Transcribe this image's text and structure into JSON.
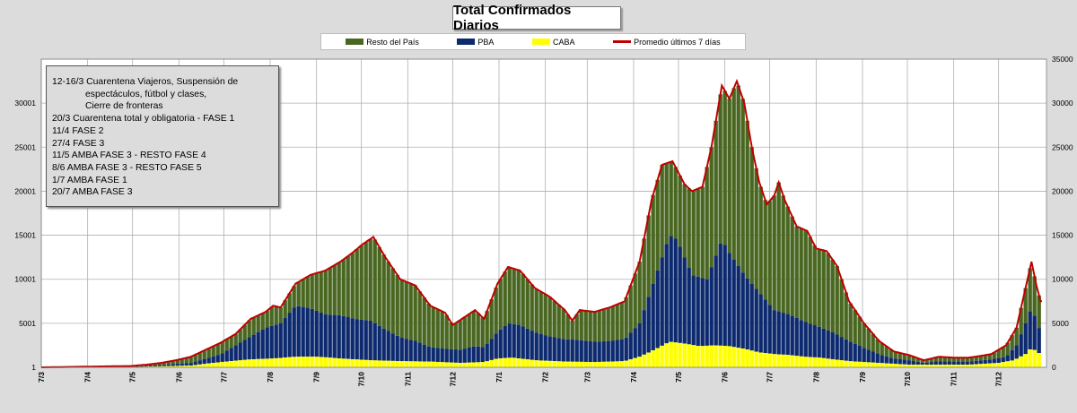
{
  "chart_data": {
    "type": "stacked-bar-with-line",
    "title": "Total  Confirmados  Diarios",
    "series_names": {
      "resto": "Resto del País",
      "pba": "PBA",
      "caba": "CABA",
      "line": "Promedio últimos 7 días"
    },
    "colors": {
      "resto": "#4a6722",
      "pba": "#0d2a6e",
      "caba": "#ffff00",
      "line": "#c00000",
      "grid": "#b0b0b0",
      "plot_bg": "#ffffff"
    },
    "left_axis": {
      "ticks": [
        "1",
        "5001",
        "10001",
        "15001",
        "20001",
        "25001",
        "30001"
      ],
      "values": [
        1,
        5001,
        10001,
        15001,
        20001,
        25001,
        30001
      ],
      "range": [
        1,
        35001
      ]
    },
    "right_axis": {
      "ticks": [
        "0",
        "5000",
        "10000",
        "15000",
        "20000",
        "25000",
        "30000",
        "35000"
      ],
      "values": [
        0,
        5000,
        10000,
        15000,
        20000,
        25000,
        30000,
        35000
      ],
      "range": [
        0,
        35000
      ]
    },
    "x_tick_labels": [
      "7/3",
      "7/4",
      "7/5",
      "7/6",
      "7/7",
      "7/8",
      "7/9",
      "7/10",
      "7/11",
      "7/12",
      "7/1",
      "7/2",
      "7/3",
      "7/4",
      "7/5",
      "7/6",
      "7/7",
      "7/8",
      "7/9",
      "7/10",
      "7/11",
      "7/12"
    ],
    "x_tick_days": [
      0,
      31,
      61,
      92,
      122,
      153,
      184,
      214,
      245,
      275,
      306,
      337,
      365,
      396,
      426,
      457,
      487,
      518,
      549,
      579,
      610,
      640
    ],
    "total_days": 672,
    "bar_stride_days": 3,
    "total_keypoints": [
      [
        0,
        0
      ],
      [
        20,
        50
      ],
      [
        40,
        100
      ],
      [
        60,
        150
      ],
      [
        70,
        300
      ],
      [
        80,
        500
      ],
      [
        90,
        800
      ],
      [
        100,
        1200
      ],
      [
        110,
        2000
      ],
      [
        120,
        2800
      ],
      [
        130,
        3800
      ],
      [
        140,
        5500
      ],
      [
        150,
        6300
      ],
      [
        155,
        7000
      ],
      [
        160,
        6800
      ],
      [
        170,
        9500
      ],
      [
        180,
        10500
      ],
      [
        190,
        11000
      ],
      [
        200,
        12000
      ],
      [
        208,
        13000
      ],
      [
        215,
        14000
      ],
      [
        222,
        14800
      ],
      [
        230,
        12500
      ],
      [
        240,
        10000
      ],
      [
        250,
        9300
      ],
      [
        260,
        7000
      ],
      [
        270,
        6200
      ],
      [
        275,
        4800
      ],
      [
        290,
        6500
      ],
      [
        296,
        5500
      ],
      [
        305,
        9500
      ],
      [
        312,
        11400
      ],
      [
        320,
        11000
      ],
      [
        330,
        9000
      ],
      [
        340,
        8000
      ],
      [
        350,
        6500
      ],
      [
        355,
        5300
      ],
      [
        360,
        6500
      ],
      [
        370,
        6300
      ],
      [
        380,
        6800
      ],
      [
        390,
        7500
      ],
      [
        400,
        12000
      ],
      [
        408,
        19000
      ],
      [
        415,
        23000
      ],
      [
        422,
        23400
      ],
      [
        430,
        20800
      ],
      [
        435,
        20000
      ],
      [
        442,
        20500
      ],
      [
        448,
        25000
      ],
      [
        455,
        32000
      ],
      [
        460,
        30500
      ],
      [
        465,
        32500
      ],
      [
        470,
        30000
      ],
      [
        475,
        25000
      ],
      [
        480,
        21000
      ],
      [
        485,
        18500
      ],
      [
        490,
        19500
      ],
      [
        493,
        21000
      ],
      [
        497,
        19000
      ],
      [
        505,
        16000
      ],
      [
        512,
        15500
      ],
      [
        518,
        13500
      ],
      [
        525,
        13200
      ],
      [
        532,
        11500
      ],
      [
        540,
        7500
      ],
      [
        550,
        5000
      ],
      [
        560,
        3000
      ],
      [
        570,
        1800
      ],
      [
        580,
        1400
      ],
      [
        590,
        800
      ],
      [
        600,
        1200
      ],
      [
        610,
        1100
      ],
      [
        620,
        1100
      ],
      [
        628,
        1300
      ],
      [
        635,
        1500
      ],
      [
        645,
        2500
      ],
      [
        652,
        4500
      ],
      [
        658,
        9000
      ],
      [
        662,
        12000
      ],
      [
        665,
        9500
      ],
      [
        668,
        7500
      ]
    ],
    "pba_keypoints": [
      [
        0,
        0
      ],
      [
        60,
        50
      ],
      [
        100,
        500
      ],
      [
        120,
        1500
      ],
      [
        140,
        3500
      ],
      [
        150,
        4500
      ],
      [
        160,
        5000
      ],
      [
        170,
        7000
      ],
      [
        180,
        6700
      ],
      [
        190,
        6000
      ],
      [
        200,
        5900
      ],
      [
        210,
        5500
      ],
      [
        220,
        5300
      ],
      [
        230,
        4300
      ],
      [
        240,
        3400
      ],
      [
        250,
        3000
      ],
      [
        260,
        2300
      ],
      [
        270,
        2100
      ],
      [
        280,
        2000
      ],
      [
        290,
        2400
      ],
      [
        296,
        2300
      ],
      [
        305,
        4000
      ],
      [
        312,
        5000
      ],
      [
        320,
        4800
      ],
      [
        330,
        4000
      ],
      [
        340,
        3500
      ],
      [
        350,
        3200
      ],
      [
        360,
        3100
      ],
      [
        370,
        2900
      ],
      [
        380,
        3000
      ],
      [
        390,
        3200
      ],
      [
        400,
        5000
      ],
      [
        410,
        10000
      ],
      [
        420,
        15000
      ],
      [
        425,
        14500
      ],
      [
        435,
        10500
      ],
      [
        445,
        10000
      ],
      [
        455,
        14500
      ],
      [
        460,
        13000
      ],
      [
        470,
        10500
      ],
      [
        480,
        8500
      ],
      [
        490,
        6500
      ],
      [
        500,
        6000
      ],
      [
        510,
        5200
      ],
      [
        520,
        4600
      ],
      [
        530,
        3900
      ],
      [
        540,
        3000
      ],
      [
        550,
        2200
      ],
      [
        560,
        1500
      ],
      [
        570,
        1000
      ],
      [
        580,
        800
      ],
      [
        590,
        500
      ],
      [
        600,
        700
      ],
      [
        610,
        650
      ],
      [
        620,
        650
      ],
      [
        635,
        900
      ],
      [
        645,
        1200
      ],
      [
        652,
        2500
      ],
      [
        658,
        5000
      ],
      [
        662,
        6800
      ],
      [
        668,
        4000
      ]
    ],
    "caba_keypoints": [
      [
        0,
        0
      ],
      [
        60,
        30
      ],
      [
        100,
        200
      ],
      [
        120,
        600
      ],
      [
        140,
        900
      ],
      [
        155,
        1000
      ],
      [
        170,
        1200
      ],
      [
        185,
        1200
      ],
      [
        200,
        1000
      ],
      [
        220,
        800
      ],
      [
        240,
        700
      ],
      [
        260,
        650
      ],
      [
        280,
        500
      ],
      [
        296,
        600
      ],
      [
        305,
        1000
      ],
      [
        315,
        1100
      ],
      [
        330,
        800
      ],
      [
        350,
        650
      ],
      [
        370,
        600
      ],
      [
        390,
        700
      ],
      [
        400,
        1200
      ],
      [
        410,
        2000
      ],
      [
        420,
        2900
      ],
      [
        430,
        2700
      ],
      [
        440,
        2400
      ],
      [
        450,
        2500
      ],
      [
        460,
        2400
      ],
      [
        470,
        2100
      ],
      [
        480,
        1700
      ],
      [
        490,
        1500
      ],
      [
        500,
        1400
      ],
      [
        510,
        1200
      ],
      [
        520,
        1100
      ],
      [
        530,
        900
      ],
      [
        540,
        700
      ],
      [
        560,
        500
      ],
      [
        580,
        300
      ],
      [
        600,
        300
      ],
      [
        620,
        300
      ],
      [
        640,
        500
      ],
      [
        650,
        800
      ],
      [
        658,
        1500
      ],
      [
        662,
        2200
      ],
      [
        668,
        1500
      ]
    ]
  },
  "annotation_box": {
    "lines": [
      "12-16/3  Cuarentena Viajeros, Suspensión de",
      "espectáculos, fútbol y clases,",
      "Cierre de fronteras",
      "20/3 Cuarentena total y obligatoria - FASE 1",
      "11/4 FASE 2",
      "27/4 FASE 3",
      "11/5 AMBA FASE 3 - RESTO FASE 4",
      "8/6 AMBA FASE 3 - RESTO FASE 5",
      "1/7 AMBA FASE 1",
      "20/7 AMBA FASE 3"
    ]
  }
}
